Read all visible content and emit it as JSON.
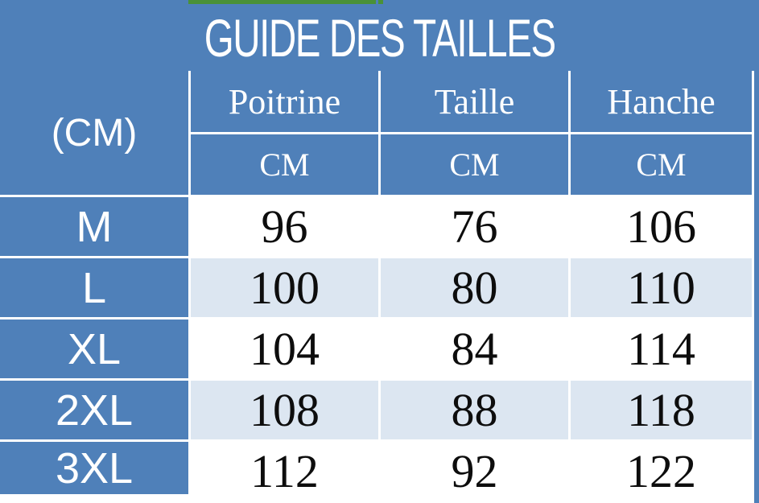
{
  "title": "GUIDE DES TAILLES",
  "unit_label": "(CM)",
  "columns": [
    {
      "label": "Poitrine",
      "unit": "CM"
    },
    {
      "label": "Taille",
      "unit": "CM"
    },
    {
      "label": "Hanche",
      "unit": "CM"
    }
  ],
  "rows": [
    {
      "size": "M",
      "values": [
        "96",
        "76",
        "106"
      ]
    },
    {
      "size": "L",
      "values": [
        "100",
        "80",
        "110"
      ]
    },
    {
      "size": "XL",
      "values": [
        "104",
        "84",
        "114"
      ]
    },
    {
      "size": "2XL",
      "values": [
        "108",
        "88",
        "118"
      ]
    },
    {
      "size": "3XL",
      "values": [
        "112",
        "92",
        "122"
      ]
    }
  ],
  "colors": {
    "header_blue": "#4f80b9",
    "row_alt_blue": "#dce6f1",
    "row_white": "#ffffff",
    "accent_green": "#4a9137",
    "grid_line": "#ffffff",
    "value_text": "#0d0d0d",
    "header_text": "#ffffff"
  },
  "chart_data": {
    "type": "table",
    "title": "GUIDE DES TAILLES",
    "unit": "CM",
    "column_headers": [
      "Poitrine",
      "Taille",
      "Hanche"
    ],
    "row_headers": [
      "M",
      "L",
      "XL",
      "2XL",
      "3XL"
    ],
    "values": [
      [
        96,
        76,
        106
      ],
      [
        100,
        80,
        110
      ],
      [
        104,
        84,
        114
      ],
      [
        108,
        88,
        118
      ],
      [
        112,
        92,
        122
      ]
    ]
  }
}
